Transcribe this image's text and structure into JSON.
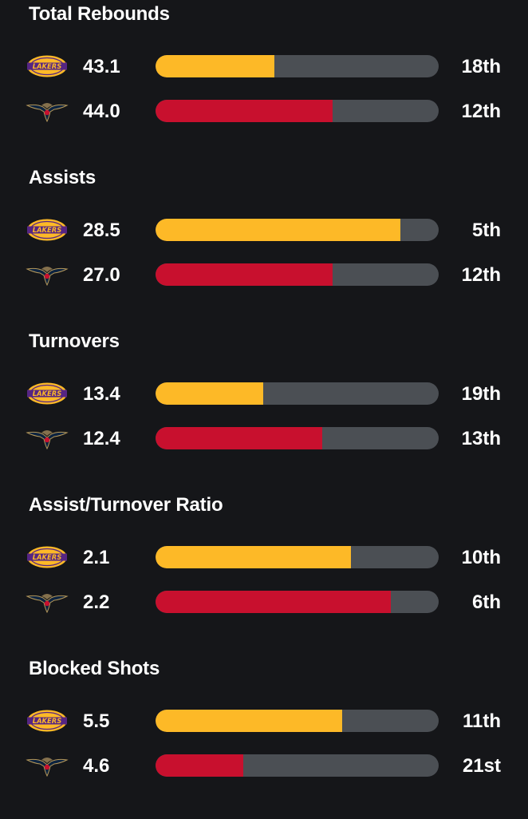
{
  "colors": {
    "background": "#151619",
    "track": "#4b4f54",
    "lakers": "#fdb927",
    "pelicans": "#c8102e"
  },
  "teams": {
    "lakers": {
      "logo_icon": "lakers-logo-icon",
      "logo_text": "LAKERS"
    },
    "pelicans": {
      "logo_icon": "pelicans-logo-icon"
    }
  },
  "stats": [
    {
      "title": "Total Rebounds",
      "lakers": {
        "value": "43.1",
        "rank": "18th",
        "bar_fraction": 0.42
      },
      "pelicans": {
        "value": "44.0",
        "rank": "12th",
        "bar_fraction": 0.625
      }
    },
    {
      "title": "Assists",
      "lakers": {
        "value": "28.5",
        "rank": "5th",
        "bar_fraction": 0.865
      },
      "pelicans": {
        "value": "27.0",
        "rank": "12th",
        "bar_fraction": 0.625
      }
    },
    {
      "title": "Turnovers",
      "lakers": {
        "value": "13.4",
        "rank": "19th",
        "bar_fraction": 0.38
      },
      "pelicans": {
        "value": "12.4",
        "rank": "13th",
        "bar_fraction": 0.59
      }
    },
    {
      "title": "Assist/Turnover Ratio",
      "lakers": {
        "value": "2.1",
        "rank": "10th",
        "bar_fraction": 0.69
      },
      "pelicans": {
        "value": "2.2",
        "rank": "6th",
        "bar_fraction": 0.83
      }
    },
    {
      "title": "Blocked Shots",
      "lakers": {
        "value": "5.5",
        "rank": "11th",
        "bar_fraction": 0.66
      },
      "pelicans": {
        "value": "4.6",
        "rank": "21st",
        "bar_fraction": 0.31
      }
    }
  ]
}
